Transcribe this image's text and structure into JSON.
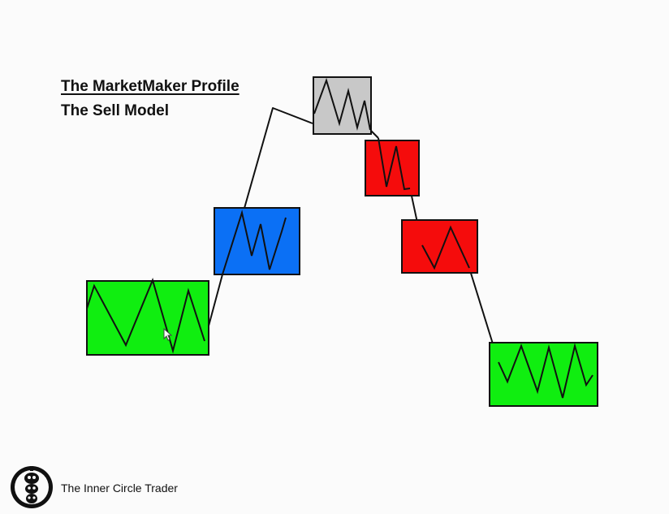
{
  "header": {
    "title": "The MarketMaker Profile",
    "subtitle": "The Sell Model"
  },
  "colors": {
    "accumulation": "#10ee10",
    "reaccumulation": "#0b70f5",
    "distribution": "#c8c8c8",
    "redistribution": "#f50c0c",
    "stroke": "#111111"
  },
  "footer": {
    "brand_name": "The Inner Circle Trader",
    "logo_icon": "ict-logo-icon"
  }
}
